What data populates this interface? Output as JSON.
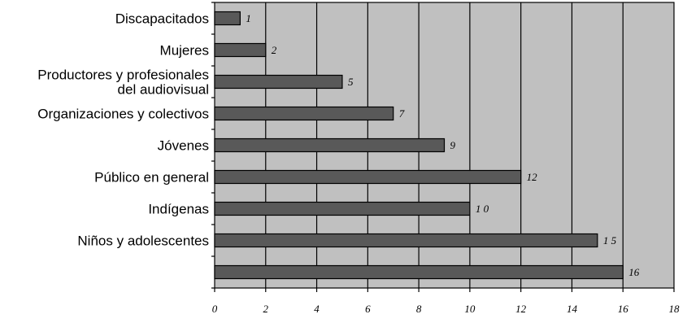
{
  "chart_data": {
    "type": "bar",
    "orientation": "horizontal",
    "title": "",
    "xlabel": "",
    "ylabel": "",
    "categories": [
      [
        "Discapacitados"
      ],
      [
        "Mujeres"
      ],
      [
        "Productores y profesionales",
        "del audiovisual"
      ],
      [
        "Organizaciones y colectivos"
      ],
      [
        "Jóvenes"
      ],
      [
        "Público en general"
      ],
      [
        "Indígenas"
      ],
      [
        "Niños y adolescentes"
      ],
      [
        ""
      ]
    ],
    "values": [
      1,
      2,
      5,
      7,
      9,
      12,
      10,
      15,
      16
    ],
    "value_labels": [
      "1",
      "2",
      "5",
      "7",
      "9",
      "12",
      "1 0",
      "1 5",
      "16"
    ],
    "xlim": [
      0,
      18
    ],
    "xticks": [
      0,
      2,
      4,
      6,
      8,
      10,
      12,
      14,
      16,
      18
    ],
    "grid": "vertical",
    "legend": "none",
    "colors": {
      "plot_background": "#c0c0c0",
      "bar_fill": "#595959",
      "bar_stroke": "#000000",
      "grid": "#000000"
    }
  }
}
